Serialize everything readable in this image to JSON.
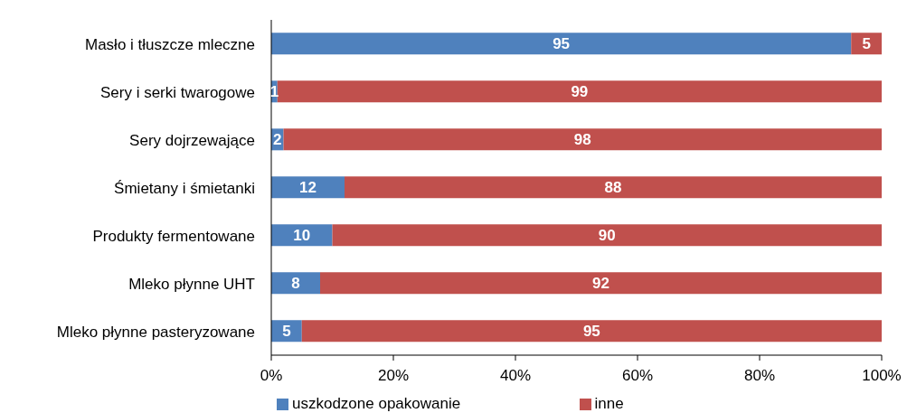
{
  "chart_data": {
    "type": "bar",
    "orientation": "horizontal",
    "stacked": true,
    "data_labels": true,
    "grid": false,
    "legend": "bottom",
    "categories": [
      "Masło i tłuszcze mleczne",
      "Sery i serki twarogowe",
      "Sery dojrzewające",
      "Śmietany i śmietanki",
      "Produkty fermentowane",
      "Mleko płynne UHT",
      "Mleko płynne pasteryzowane"
    ],
    "series": [
      {
        "name": "uszkodzone opakowanie",
        "color": "#4f81bd",
        "values": [
          95,
          1,
          2,
          12,
          10,
          8,
          5
        ]
      },
      {
        "name": "inne",
        "color": "#c0504d",
        "values": [
          5,
          99,
          98,
          88,
          90,
          92,
          95
        ]
      }
    ],
    "xlim": [
      0,
      100
    ],
    "xticks": [
      {
        "value": 0,
        "label": "0%"
      },
      {
        "value": 20,
        "label": "20%"
      },
      {
        "value": 40,
        "label": "40%"
      },
      {
        "value": 60,
        "label": "60%"
      },
      {
        "value": 80,
        "label": "80%"
      },
      {
        "value": 100,
        "label": "100%"
      }
    ]
  }
}
